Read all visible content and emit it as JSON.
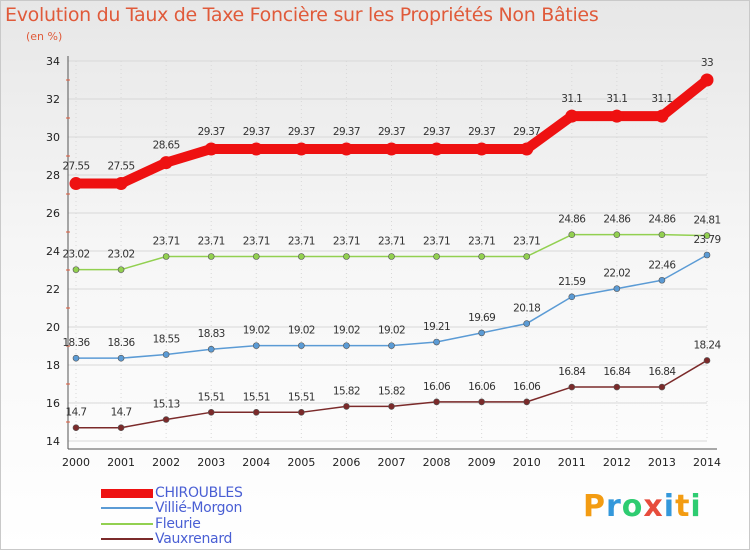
{
  "chart_data": {
    "type": "line",
    "title": "Evolution du Taux de Taxe Foncière sur les Propriétés Non Bâties",
    "ylabel": "(en %)",
    "xlabel": "",
    "categories": [
      "2000",
      "2001",
      "2002",
      "2003",
      "2004",
      "2005",
      "2006",
      "2007",
      "2008",
      "2009",
      "2010",
      "2011",
      "2012",
      "2013",
      "2014"
    ],
    "ylim": [
      14,
      34
    ],
    "yticks": [
      "14",
      "16",
      "18",
      "20",
      "22",
      "24",
      "26",
      "28",
      "30",
      "32",
      "34"
    ],
    "grid": true,
    "legend_position": "bottom-left",
    "series": [
      {
        "name": "CHIROUBLES",
        "color": "#ee1111",
        "values": [
          27.55,
          27.55,
          28.65,
          29.37,
          29.37,
          29.37,
          29.37,
          29.37,
          29.37,
          29.37,
          29.37,
          31.1,
          31.1,
          31.1,
          33
        ],
        "labels": [
          "27.55",
          "27.55",
          "28.65",
          "29.37",
          "29.37",
          "29.37",
          "29.37",
          "29.37",
          "29.37",
          "29.37",
          "29.37",
          "31.1",
          "31.1",
          "31.1",
          "33"
        ]
      },
      {
        "name": "Villié-Morgon",
        "color": "#5b9bd5",
        "values": [
          18.36,
          18.36,
          18.55,
          18.83,
          19.02,
          19.02,
          19.02,
          19.02,
          19.21,
          19.69,
          20.18,
          21.59,
          22.02,
          22.46,
          23.79
        ],
        "labels": [
          "18.36",
          "18.36",
          "18.55",
          "18.83",
          "19.02",
          "19.02",
          "19.02",
          "19.02",
          "19.21",
          "19.69",
          "20.18",
          "21.59",
          "22.02",
          "22.46",
          "23.79"
        ]
      },
      {
        "name": "Fleurie",
        "color": "#92d050",
        "values": [
          23.02,
          23.02,
          23.71,
          23.71,
          23.71,
          23.71,
          23.71,
          23.71,
          23.71,
          23.71,
          23.71,
          24.86,
          24.86,
          24.86,
          24.81
        ],
        "labels": [
          "23.02",
          "23.02",
          "23.71",
          "23.71",
          "23.71",
          "23.71",
          "23.71",
          "23.71",
          "23.71",
          "23.71",
          "23.71",
          "24.86",
          "24.86",
          "24.86",
          "24.81"
        ]
      },
      {
        "name": "Vauxrenard",
        "color": "#7b2a2a",
        "values": [
          14.7,
          14.7,
          15.13,
          15.51,
          15.51,
          15.51,
          15.82,
          15.82,
          16.06,
          16.06,
          16.06,
          16.84,
          16.84,
          16.84,
          18.24
        ],
        "labels": [
          "14.7",
          "14.7",
          "15.13",
          "15.51",
          "15.51",
          "15.51",
          "15.82",
          "15.82",
          "16.06",
          "16.06",
          "16.06",
          "16.84",
          "16.84",
          "16.84",
          "18.24"
        ]
      }
    ]
  },
  "brand": {
    "letters": [
      "P",
      "r",
      "o",
      "x",
      "i",
      "t",
      "i"
    ],
    "colors": [
      "#f39c12",
      "#3498db",
      "#2ecc71",
      "#e74c3c",
      "#3498db",
      "#f39c12",
      "#2ecc71"
    ]
  }
}
